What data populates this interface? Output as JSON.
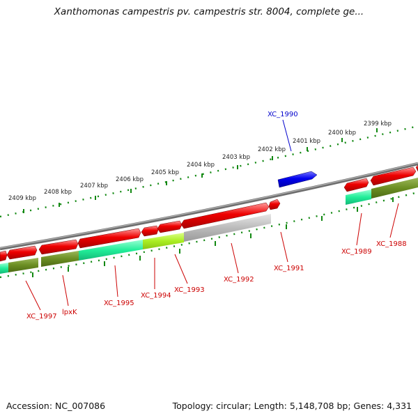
{
  "title": "Xanthomonas campestris pv. campestris str. 8004, complete ge...",
  "footer": {
    "accession": "Accession: NC_007086",
    "topology": "Topology: circular; Length: 5,148,708 bp; Genes: 4,331"
  },
  "colors": {
    "backbone": "#7f7f7f",
    "forward_gene": "#ee0000",
    "reverse_gene": "#0000ee",
    "highlight_label": "#0000cc",
    "gene_label": "#cc0000",
    "tick": "#118811",
    "cog_mint": "#22ee99",
    "cog_olive": "#6b8e23",
    "cog_lime": "#aaee22",
    "cog_gray": "#bbbbbb"
  },
  "kbp_labels": [
    "2409 kbp",
    "2408 kbp",
    "2407 kbp",
    "2406 kbp",
    "2405 kbp",
    "2404 kbp",
    "2403 kbp",
    "2402 kbp",
    "2401 kbp",
    "2400 kbp",
    "2399 kbp"
  ],
  "genes": [
    {
      "label": "XC_1990"
    },
    {
      "label": "XC_1988"
    },
    {
      "label": "XC_1989"
    },
    {
      "label": "XC_1991"
    },
    {
      "label": "XC_1992"
    },
    {
      "label": "XC_1993"
    },
    {
      "label": "XC_1994"
    },
    {
      "label": "XC_1995"
    },
    {
      "label": "lpxK"
    },
    {
      "label": "XC_1997"
    }
  ]
}
